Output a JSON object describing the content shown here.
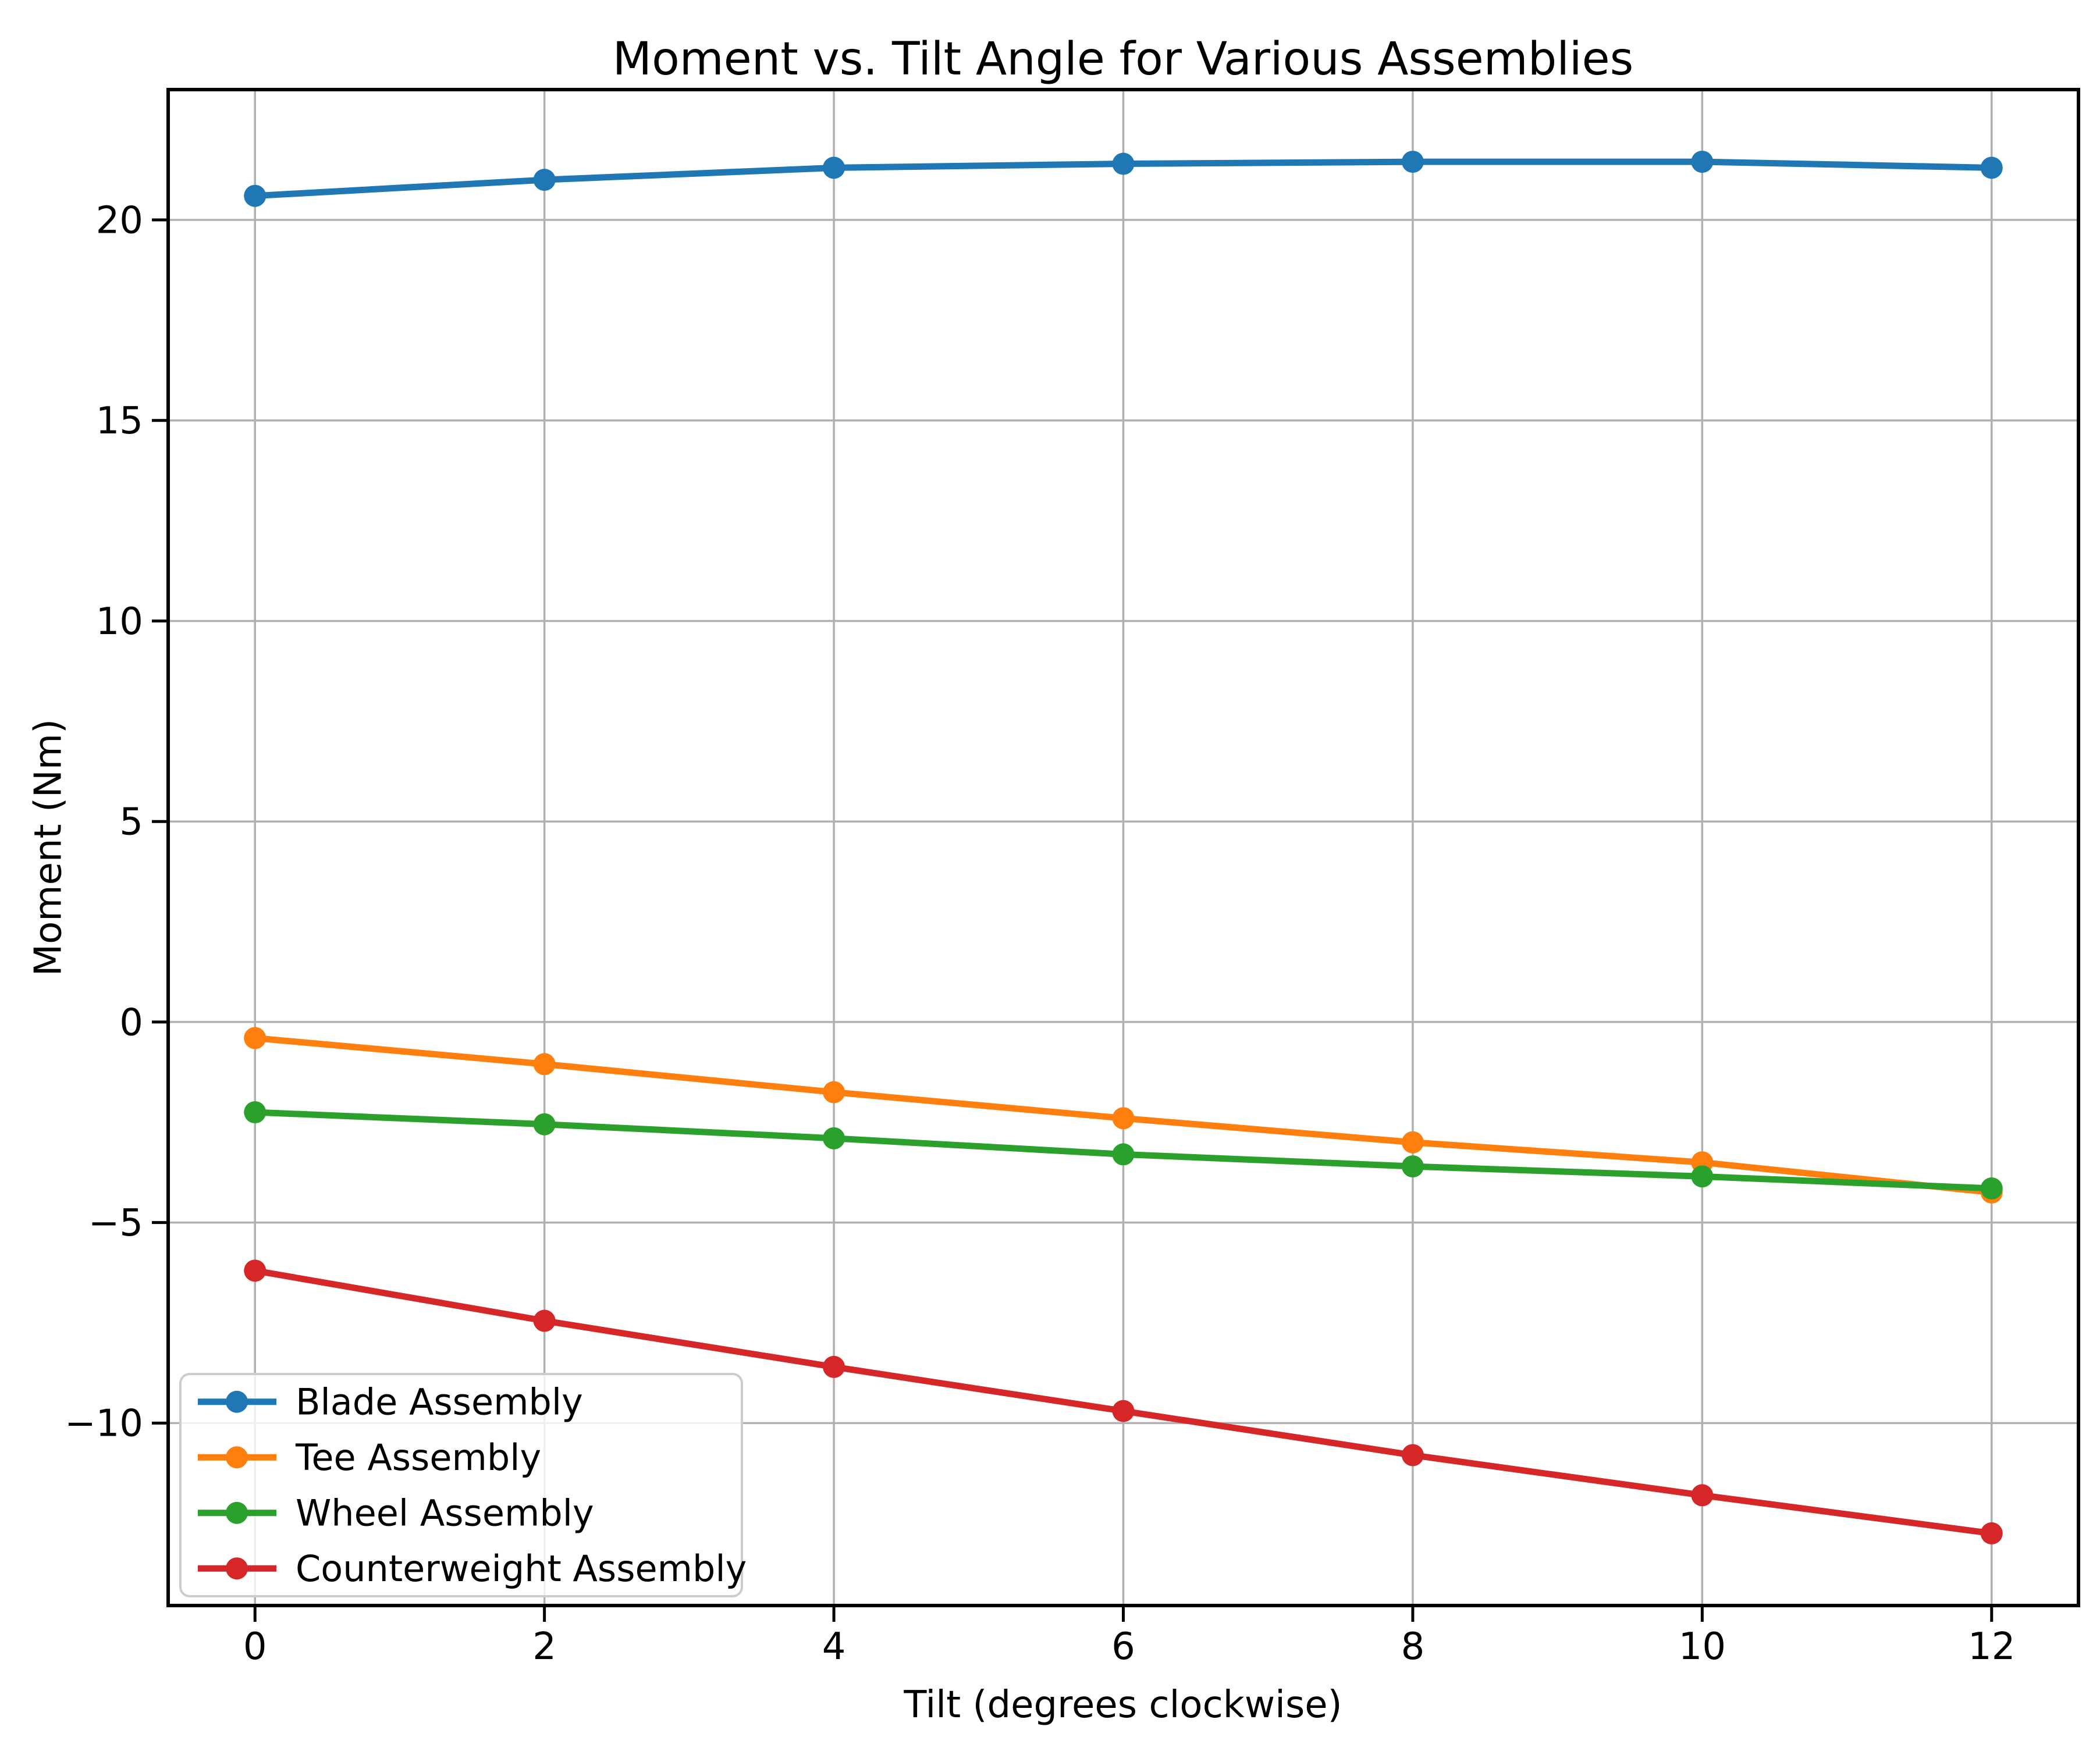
{
  "chart_data": {
    "type": "line",
    "title": "Moment vs. Tilt Angle for Various Assemblies",
    "xlabel": "Tilt (degrees clockwise)",
    "ylabel": "Moment (Nm)",
    "x": [
      0,
      2,
      4,
      6,
      8,
      10,
      12
    ],
    "series": [
      {
        "name": "Blade Assembly",
        "color": "#1f77b4",
        "values": [
          20.6,
          21.0,
          21.3,
          21.4,
          21.45,
          21.45,
          21.3
        ]
      },
      {
        "name": "Tee Assembly",
        "color": "#ff7f0e",
        "values": [
          -0.4,
          -1.05,
          -1.75,
          -2.4,
          -3.0,
          -3.5,
          -4.25
        ]
      },
      {
        "name": "Wheel Assembly",
        "color": "#2ca02c",
        "values": [
          -2.25,
          -2.55,
          -2.9,
          -3.3,
          -3.6,
          -3.85,
          -4.15
        ]
      },
      {
        "name": "Counterweight Assembly",
        "color": "#d62728",
        "values": [
          -6.2,
          -7.45,
          -8.6,
          -9.7,
          -10.8,
          -11.8,
          -12.75
        ]
      }
    ],
    "xticks": {
      "values": [
        0,
        2,
        4,
        6,
        8,
        10,
        12
      ],
      "labels": [
        "0",
        "2",
        "4",
        "6",
        "8",
        "10",
        "12"
      ]
    },
    "yticks": {
      "values": [
        20,
        15,
        10,
        5,
        0,
        -5,
        -10
      ],
      "labels": [
        "20",
        "15",
        "10",
        "5",
        "0",
        "−5",
        "−10"
      ]
    },
    "xlim": [
      -0.6,
      12.6
    ],
    "ylim": [
      -14.55,
      23.25
    ],
    "grid": true,
    "grid_color": "#b0b0b0",
    "axis_color": "#000000",
    "marker": "o",
    "line_style": "solid",
    "legend": {
      "position": "lower left",
      "entries": [
        "Blade Assembly",
        "Tee Assembly",
        "Wheel Assembly",
        "Counterweight Assembly"
      ]
    }
  }
}
